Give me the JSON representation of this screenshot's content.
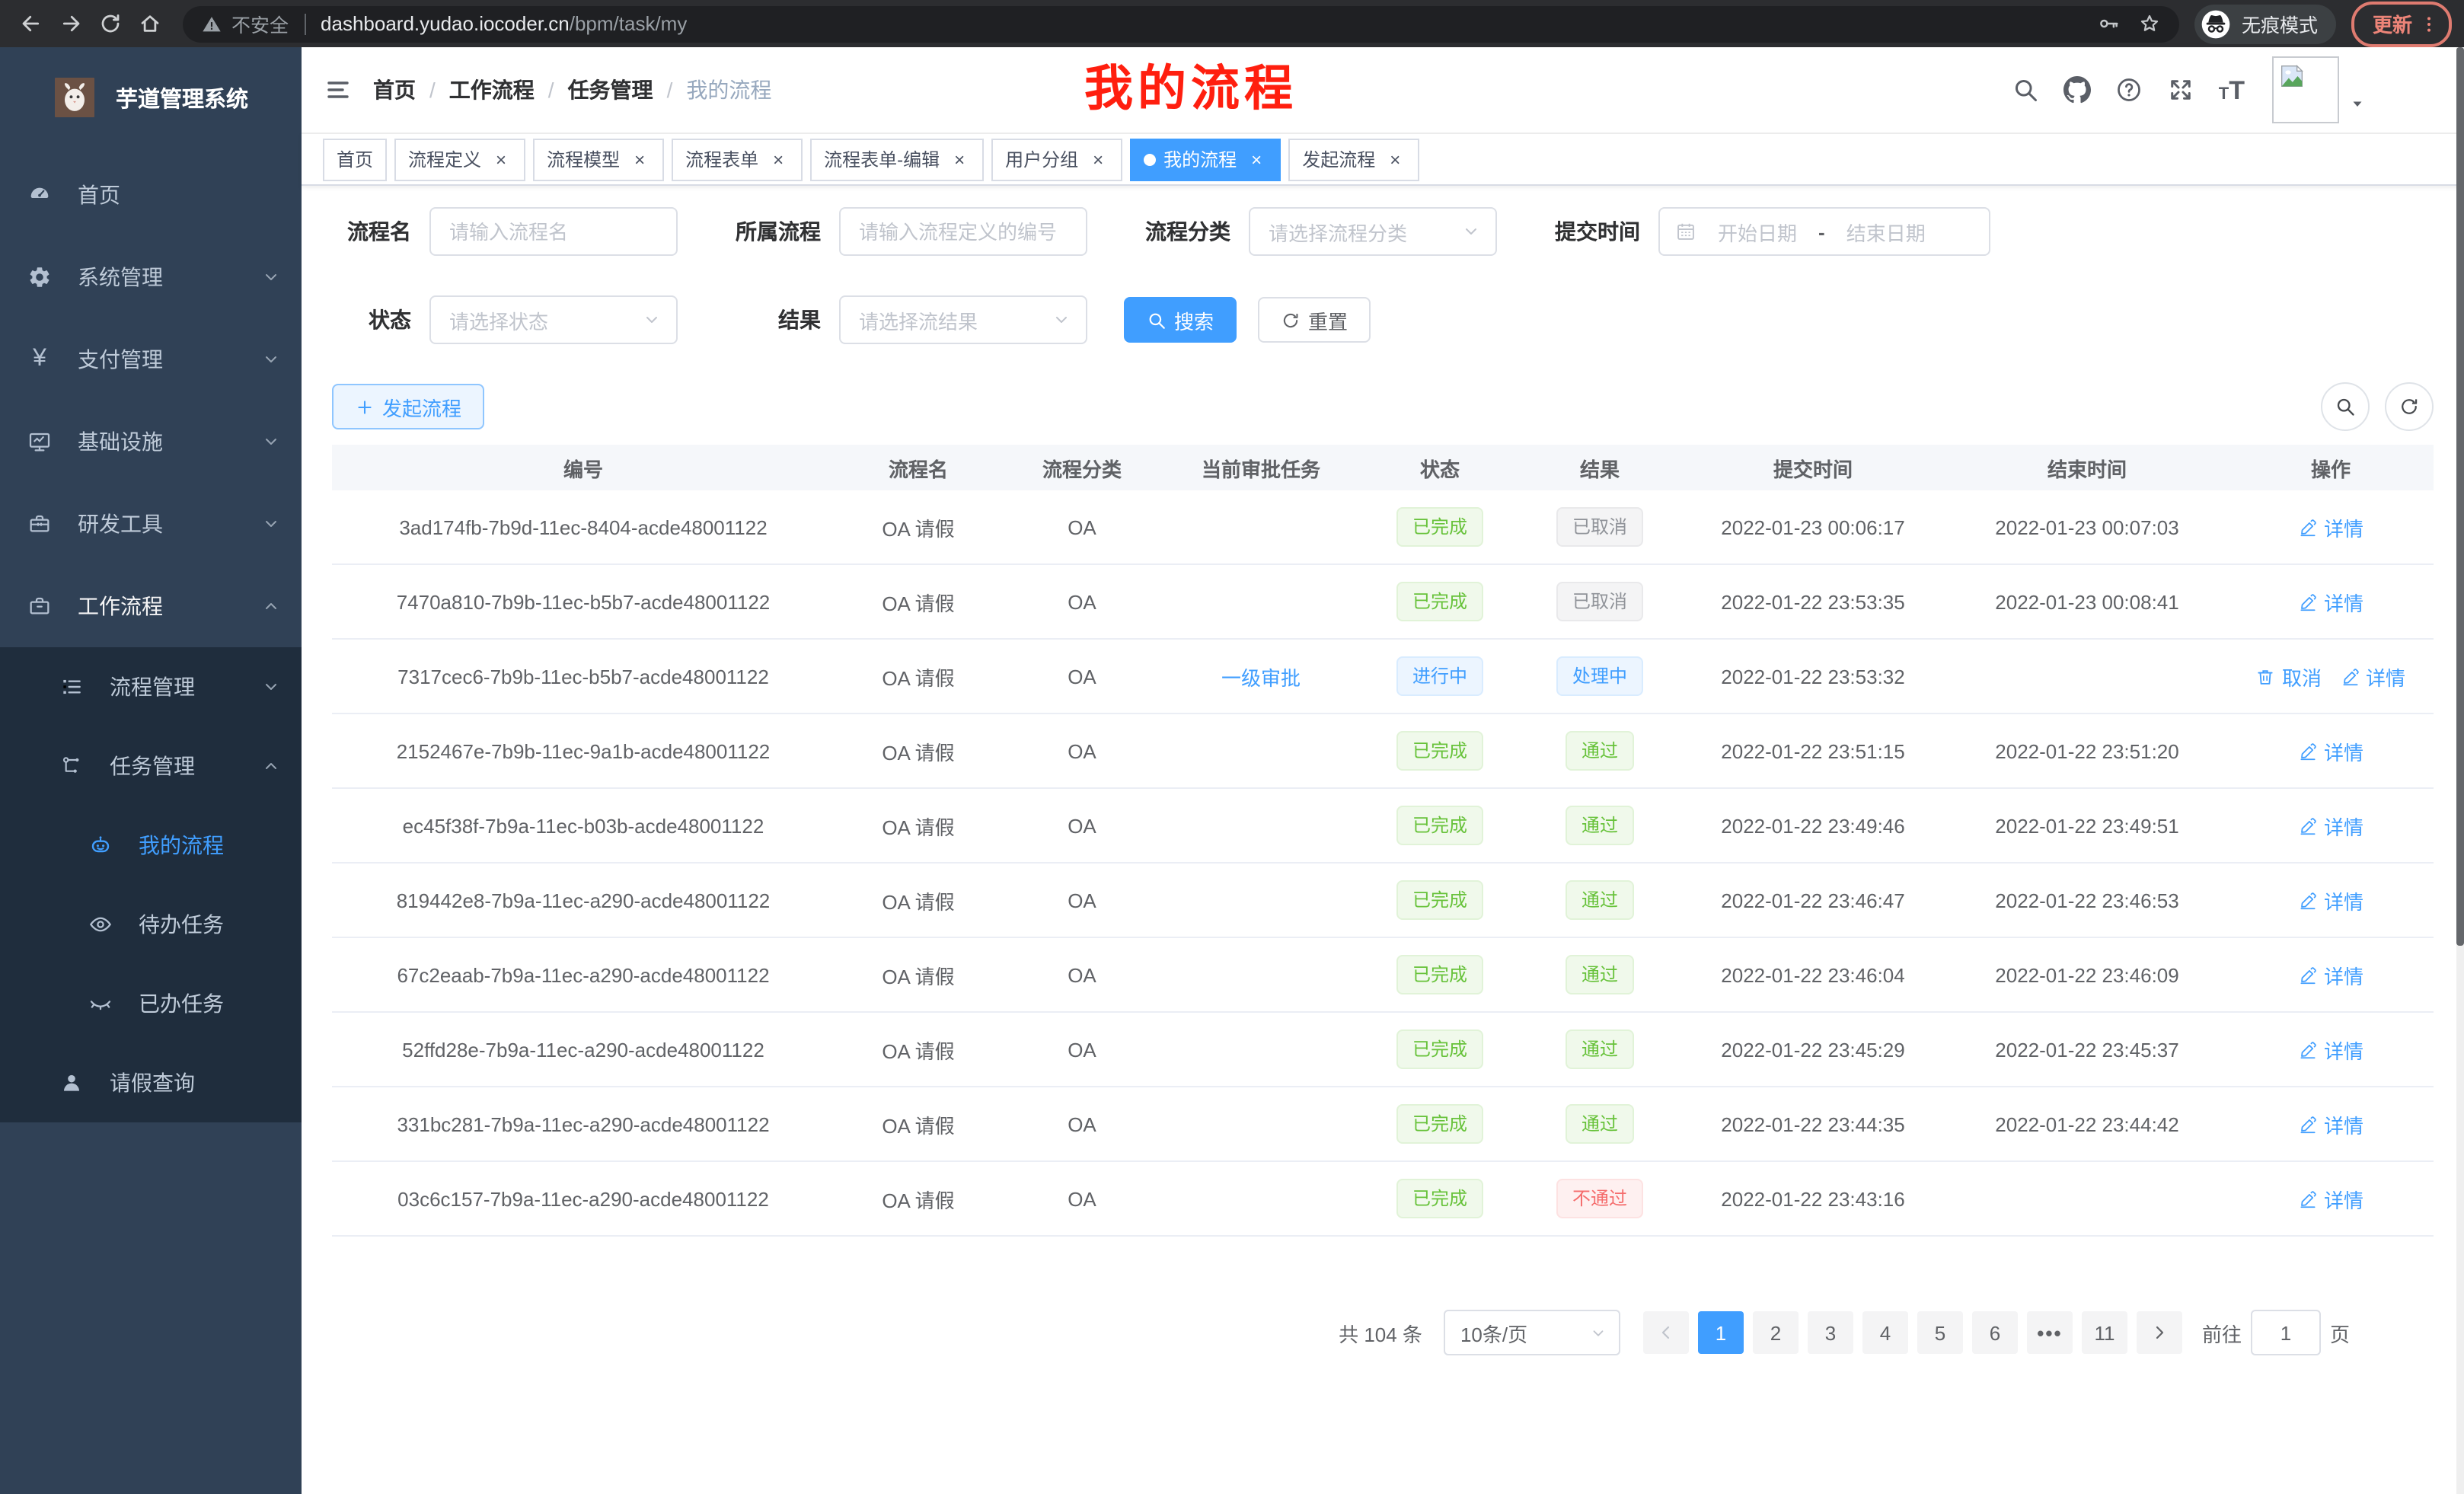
{
  "browser": {
    "security_label": "不安全",
    "url_host": "dashboard.yudao.iocoder.cn",
    "url_path": "/bpm/task/my",
    "incognito_label": "无痕模式",
    "update_label": "更新"
  },
  "colors": {
    "accent": "#409eff",
    "success": "#67c23a",
    "danger": "#f56c6c",
    "info": "#909399",
    "sidebar_bg": "#304156",
    "submenu_bg": "#1f2d3d",
    "annotation_red": "#ff1f0f"
  },
  "icons": {
    "search": "magnifier",
    "github": "octocat",
    "question": "help-circle",
    "fullscreen": "expand-arrows",
    "font-size": "tT",
    "edit": "pencil",
    "delete": "trash",
    "refresh": "circular-arrows",
    "calendar": "calendar-grid",
    "incognito": "hat-and-glasses"
  },
  "sidebar": {
    "app_title": "芋道管理系统",
    "menu": [
      {
        "name": "home",
        "label": "首页",
        "icon": "dashboard"
      },
      {
        "name": "system-management",
        "label": "系统管理",
        "icon": "gear",
        "chevron": "down"
      },
      {
        "name": "payment-management",
        "label": "支付管理",
        "icon": "yen",
        "chevron": "down"
      },
      {
        "name": "infrastructure",
        "label": "基础设施",
        "icon": "monitor",
        "chevron": "down"
      },
      {
        "name": "dev-tools",
        "label": "研发工具",
        "icon": "toolbox",
        "chevron": "down"
      },
      {
        "name": "workflow",
        "label": "工作流程",
        "icon": "briefcase",
        "chevron": "up",
        "open": true
      }
    ],
    "submenu": [
      {
        "name": "process-management",
        "label": "流程管理",
        "icon": "list-tree",
        "chevron": "down",
        "level": 2
      },
      {
        "name": "task-management",
        "label": "任务管理",
        "icon": "share-tree",
        "chevron": "up",
        "level": 2
      },
      {
        "name": "my-process",
        "label": "我的流程",
        "icon": "robot",
        "level": 3,
        "active": true
      },
      {
        "name": "todo-tasks",
        "label": "待办任务",
        "icon": "eye",
        "level": 3
      },
      {
        "name": "done-tasks",
        "label": "已办任务",
        "icon": "eye-closed",
        "level": 3
      },
      {
        "name": "leave-query",
        "label": "请假查询",
        "icon": "user",
        "level": 2
      }
    ]
  },
  "header": {
    "breadcrumb": [
      "首页",
      "工作流程",
      "任务管理",
      "我的流程"
    ],
    "overlay_title": "我的流程"
  },
  "tabs": [
    {
      "name": "home",
      "label": "首页",
      "closable": false
    },
    {
      "name": "process-definition",
      "label": "流程定义",
      "closable": true
    },
    {
      "name": "process-model",
      "label": "流程模型",
      "closable": true
    },
    {
      "name": "process-form",
      "label": "流程表单",
      "closable": true
    },
    {
      "name": "process-form-edit",
      "label": "流程表单-编辑",
      "closable": true
    },
    {
      "name": "user-group",
      "label": "用户分组",
      "closable": true
    },
    {
      "name": "my-process",
      "label": "我的流程",
      "closable": true,
      "active": true
    },
    {
      "name": "start-process",
      "label": "发起流程",
      "closable": true
    }
  ],
  "filters": {
    "name": {
      "label": "流程名",
      "placeholder": "请输入流程名"
    },
    "parent": {
      "label": "所属流程",
      "placeholder": "请输入流程定义的编号"
    },
    "category": {
      "label": "流程分类",
      "placeholder": "请选择流程分类"
    },
    "submit_time": {
      "label": "提交时间",
      "start": "开始日期",
      "sep": "-",
      "end": "结束日期"
    },
    "status": {
      "label": "状态",
      "placeholder": "请选择状态"
    },
    "result": {
      "label": "结果",
      "placeholder": "请选择流结果"
    },
    "search_label": "搜索",
    "reset_label": "重置"
  },
  "toolbar": {
    "create_label": "发起流程"
  },
  "table": {
    "columns": [
      "编号",
      "流程名",
      "流程分类",
      "当前审批任务",
      "状态",
      "结果",
      "提交时间",
      "结束时间",
      "操作"
    ],
    "rows": [
      {
        "id": "3ad174fb-7b9d-11ec-8404-acde48001122",
        "name": "OA 请假",
        "category": "OA",
        "task": "",
        "status": "已完成",
        "status_type": "success",
        "result": "已取消",
        "result_type": "info",
        "submit_time": "2022-01-23 00:06:17",
        "end_time": "2022-01-23 00:07:03",
        "actions": [
          {
            "label": "详情",
            "icon": "edit"
          }
        ]
      },
      {
        "id": "7470a810-7b9b-11ec-b5b7-acde48001122",
        "name": "OA 请假",
        "category": "OA",
        "task": "",
        "status": "已完成",
        "status_type": "success",
        "result": "已取消",
        "result_type": "info",
        "submit_time": "2022-01-22 23:53:35",
        "end_time": "2022-01-23 00:08:41",
        "actions": [
          {
            "label": "详情",
            "icon": "edit"
          }
        ]
      },
      {
        "id": "7317cec6-7b9b-11ec-b5b7-acde48001122",
        "name": "OA 请假",
        "category": "OA",
        "task": "一级审批",
        "status": "进行中",
        "status_type": "primary",
        "result": "处理中",
        "result_type": "primary",
        "submit_time": "2022-01-22 23:53:32",
        "end_time": "",
        "actions": [
          {
            "label": "取消",
            "icon": "delete"
          },
          {
            "label": "详情",
            "icon": "edit"
          }
        ]
      },
      {
        "id": "2152467e-7b9b-11ec-9a1b-acde48001122",
        "name": "OA 请假",
        "category": "OA",
        "task": "",
        "status": "已完成",
        "status_type": "success",
        "result": "通过",
        "result_type": "success",
        "submit_time": "2022-01-22 23:51:15",
        "end_time": "2022-01-22 23:51:20",
        "actions": [
          {
            "label": "详情",
            "icon": "edit"
          }
        ]
      },
      {
        "id": "ec45f38f-7b9a-11ec-b03b-acde48001122",
        "name": "OA 请假",
        "category": "OA",
        "task": "",
        "status": "已完成",
        "status_type": "success",
        "result": "通过",
        "result_type": "success",
        "submit_time": "2022-01-22 23:49:46",
        "end_time": "2022-01-22 23:49:51",
        "actions": [
          {
            "label": "详情",
            "icon": "edit"
          }
        ]
      },
      {
        "id": "819442e8-7b9a-11ec-a290-acde48001122",
        "name": "OA 请假",
        "category": "OA",
        "task": "",
        "status": "已完成",
        "status_type": "success",
        "result": "通过",
        "result_type": "success",
        "submit_time": "2022-01-22 23:46:47",
        "end_time": "2022-01-22 23:46:53",
        "actions": [
          {
            "label": "详情",
            "icon": "edit"
          }
        ]
      },
      {
        "id": "67c2eaab-7b9a-11ec-a290-acde48001122",
        "name": "OA 请假",
        "category": "OA",
        "task": "",
        "status": "已完成",
        "status_type": "success",
        "result": "通过",
        "result_type": "success",
        "submit_time": "2022-01-22 23:46:04",
        "end_time": "2022-01-22 23:46:09",
        "actions": [
          {
            "label": "详情",
            "icon": "edit"
          }
        ]
      },
      {
        "id": "52ffd28e-7b9a-11ec-a290-acde48001122",
        "name": "OA 请假",
        "category": "OA",
        "task": "",
        "status": "已完成",
        "status_type": "success",
        "result": "通过",
        "result_type": "success",
        "submit_time": "2022-01-22 23:45:29",
        "end_time": "2022-01-22 23:45:37",
        "actions": [
          {
            "label": "详情",
            "icon": "edit"
          }
        ]
      },
      {
        "id": "331bc281-7b9a-11ec-a290-acde48001122",
        "name": "OA 请假",
        "category": "OA",
        "task": "",
        "status": "已完成",
        "status_type": "success",
        "result": "通过",
        "result_type": "success",
        "submit_time": "2022-01-22 23:44:35",
        "end_time": "2022-01-22 23:44:42",
        "actions": [
          {
            "label": "详情",
            "icon": "edit"
          }
        ]
      },
      {
        "id": "03c6c157-7b9a-11ec-a290-acde48001122",
        "name": "OA 请假",
        "category": "OA",
        "task": "",
        "status": "已完成",
        "status_type": "success",
        "result": "不通过",
        "result_type": "danger",
        "submit_time": "2022-01-22 23:43:16",
        "end_time": "",
        "actions": [
          {
            "label": "详情",
            "icon": "edit"
          }
        ]
      }
    ]
  },
  "pagination": {
    "total": "共 104 条",
    "page_size": "10条/页",
    "pages": [
      {
        "label": "1",
        "active": true
      },
      {
        "label": "2"
      },
      {
        "label": "3"
      },
      {
        "label": "4"
      },
      {
        "label": "5"
      },
      {
        "label": "6"
      },
      {
        "label": "•••",
        "ellipsis": true
      },
      {
        "label": "11"
      }
    ],
    "goto_label": "前往",
    "goto_value": "1",
    "goto_unit": "页"
  }
}
